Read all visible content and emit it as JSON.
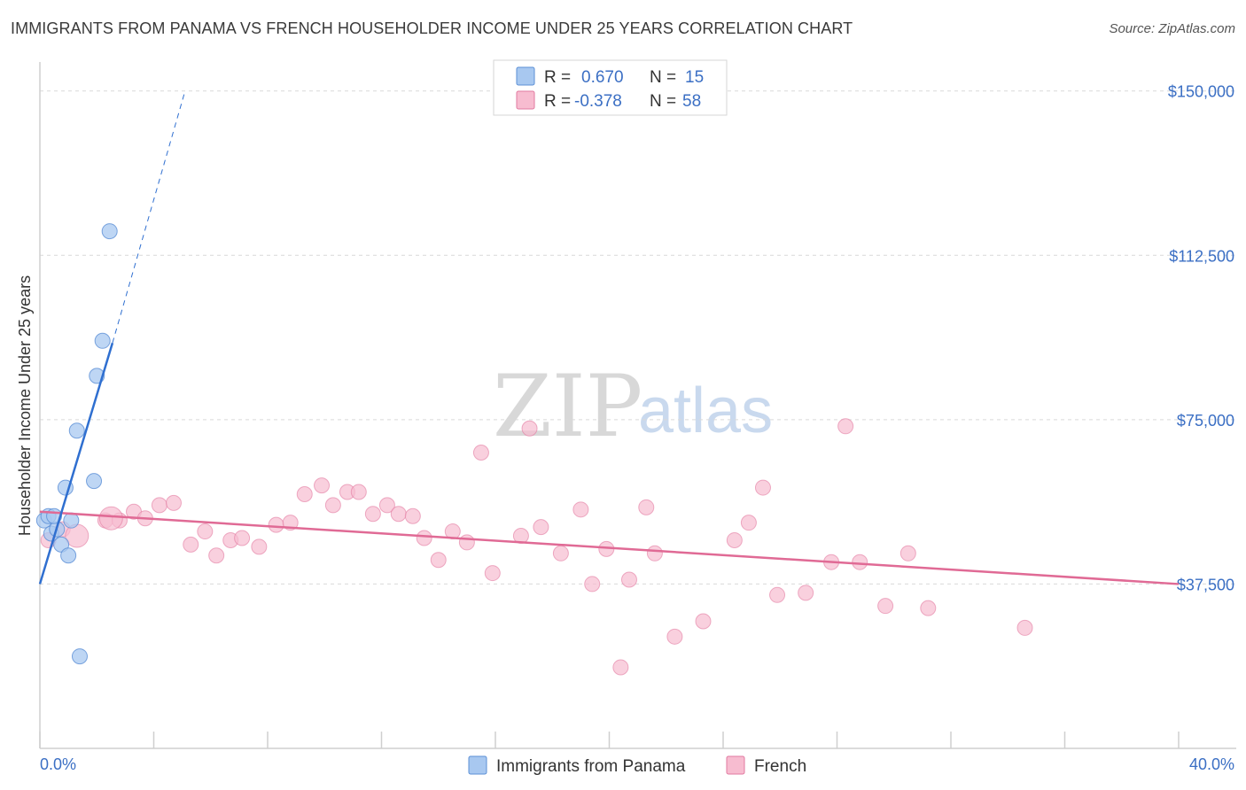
{
  "title": "IMMIGRANTS FROM PANAMA VS FRENCH HOUSEHOLDER INCOME UNDER 25 YEARS CORRELATION CHART",
  "source": "Source: ZipAtlas.com",
  "watermark": {
    "zip": "ZIP",
    "atlas": "atlas"
  },
  "stats": {
    "r_label": "R =",
    "n_label": "N =",
    "rows": [
      {
        "r": "0.670",
        "n": "15"
      },
      {
        "r": "-0.378",
        "n": "58"
      }
    ]
  },
  "colors": {
    "panama_fill": "#a8c8f0",
    "panama_stroke": "#5b8fd6",
    "panama_line": "#2f6fd0",
    "french_fill": "#f7bcd0",
    "french_stroke": "#e27aa0",
    "french_line": "#e06a95",
    "tick_text": "#3b6fc4"
  },
  "chart_data": {
    "type": "scatter",
    "title": "IMMIGRANTS FROM PANAMA VS FRENCH HOUSEHOLDER INCOME UNDER 25 YEARS CORRELATION CHART",
    "xlabel": "",
    "ylabel": "Householder Income Under 25 years",
    "xlim": [
      0,
      40
    ],
    "ylim": [
      0,
      155000
    ],
    "x_tick_labels": [
      "0.0%",
      "40.0%"
    ],
    "y_ticks": [
      37500,
      75000,
      112500,
      150000
    ],
    "y_tick_labels": [
      "$37,500",
      "$75,000",
      "$112,500",
      "$150,000"
    ],
    "grid": "horizontal dashed",
    "legend_position": "bottom-center",
    "series": [
      {
        "name": "Immigrants from Panama",
        "r": 0.67,
        "n": 15,
        "points": [
          [
            0.15,
            52000
          ],
          [
            0.3,
            53000
          ],
          [
            0.4,
            49000
          ],
          [
            0.6,
            50000
          ],
          [
            0.75,
            46500
          ],
          [
            0.9,
            59500
          ],
          [
            1.0,
            44000
          ],
          [
            1.1,
            52000
          ],
          [
            1.3,
            72500
          ],
          [
            1.4,
            21000
          ],
          [
            1.9,
            61000
          ],
          [
            2.0,
            85000
          ],
          [
            2.2,
            93000
          ],
          [
            2.45,
            118000
          ],
          [
            0.5,
            53000
          ]
        ],
        "trend": {
          "x0": 0.0,
          "y0": 37500,
          "x1": 2.55,
          "y1": 92500,
          "dashed_to": [
            5.1,
            150000
          ]
        }
      },
      {
        "name": "French",
        "r": -0.378,
        "n": 58,
        "points": [
          [
            0.3,
            47500
          ],
          [
            0.8,
            50000
          ],
          [
            1.3,
            48500
          ],
          [
            2.3,
            52000
          ],
          [
            2.8,
            52000
          ],
          [
            3.3,
            54000
          ],
          [
            3.7,
            52500
          ],
          [
            4.2,
            55500
          ],
          [
            4.7,
            56000
          ],
          [
            5.3,
            46500
          ],
          [
            5.8,
            49500
          ],
          [
            6.2,
            44000
          ],
          [
            6.7,
            47500
          ],
          [
            7.1,
            48000
          ],
          [
            7.7,
            46000
          ],
          [
            8.3,
            51000
          ],
          [
            8.8,
            51500
          ],
          [
            9.3,
            58000
          ],
          [
            9.9,
            60000
          ],
          [
            10.3,
            55500
          ],
          [
            10.8,
            58500
          ],
          [
            11.2,
            58500
          ],
          [
            11.7,
            53500
          ],
          [
            12.2,
            55500
          ],
          [
            12.6,
            53500
          ],
          [
            13.1,
            53000
          ],
          [
            13.5,
            48000
          ],
          [
            14.0,
            43000
          ],
          [
            14.5,
            49500
          ],
          [
            15.0,
            47000
          ],
          [
            15.5,
            67500
          ],
          [
            15.9,
            40000
          ],
          [
            16.9,
            48500
          ],
          [
            17.2,
            73000
          ],
          [
            17.6,
            50500
          ],
          [
            18.3,
            44500
          ],
          [
            19.0,
            54500
          ],
          [
            19.4,
            37500
          ],
          [
            19.9,
            45500
          ],
          [
            20.4,
            18500
          ],
          [
            20.7,
            38500
          ],
          [
            21.3,
            55000
          ],
          [
            21.6,
            44500
          ],
          [
            22.3,
            25500
          ],
          [
            23.3,
            29000
          ],
          [
            24.4,
            47500
          ],
          [
            24.9,
            51500
          ],
          [
            25.4,
            59500
          ],
          [
            25.9,
            35000
          ],
          [
            26.9,
            35500
          ],
          [
            27.8,
            42500
          ],
          [
            28.3,
            73500
          ],
          [
            28.8,
            42500
          ],
          [
            29.7,
            32500
          ],
          [
            30.5,
            44500
          ],
          [
            31.2,
            32000
          ],
          [
            34.6,
            27500
          ],
          [
            2.5,
            52500
          ]
        ],
        "trend": {
          "x0": 0.0,
          "y0": 54000,
          "x1": 40.0,
          "y1": 37500
        }
      }
    ]
  }
}
